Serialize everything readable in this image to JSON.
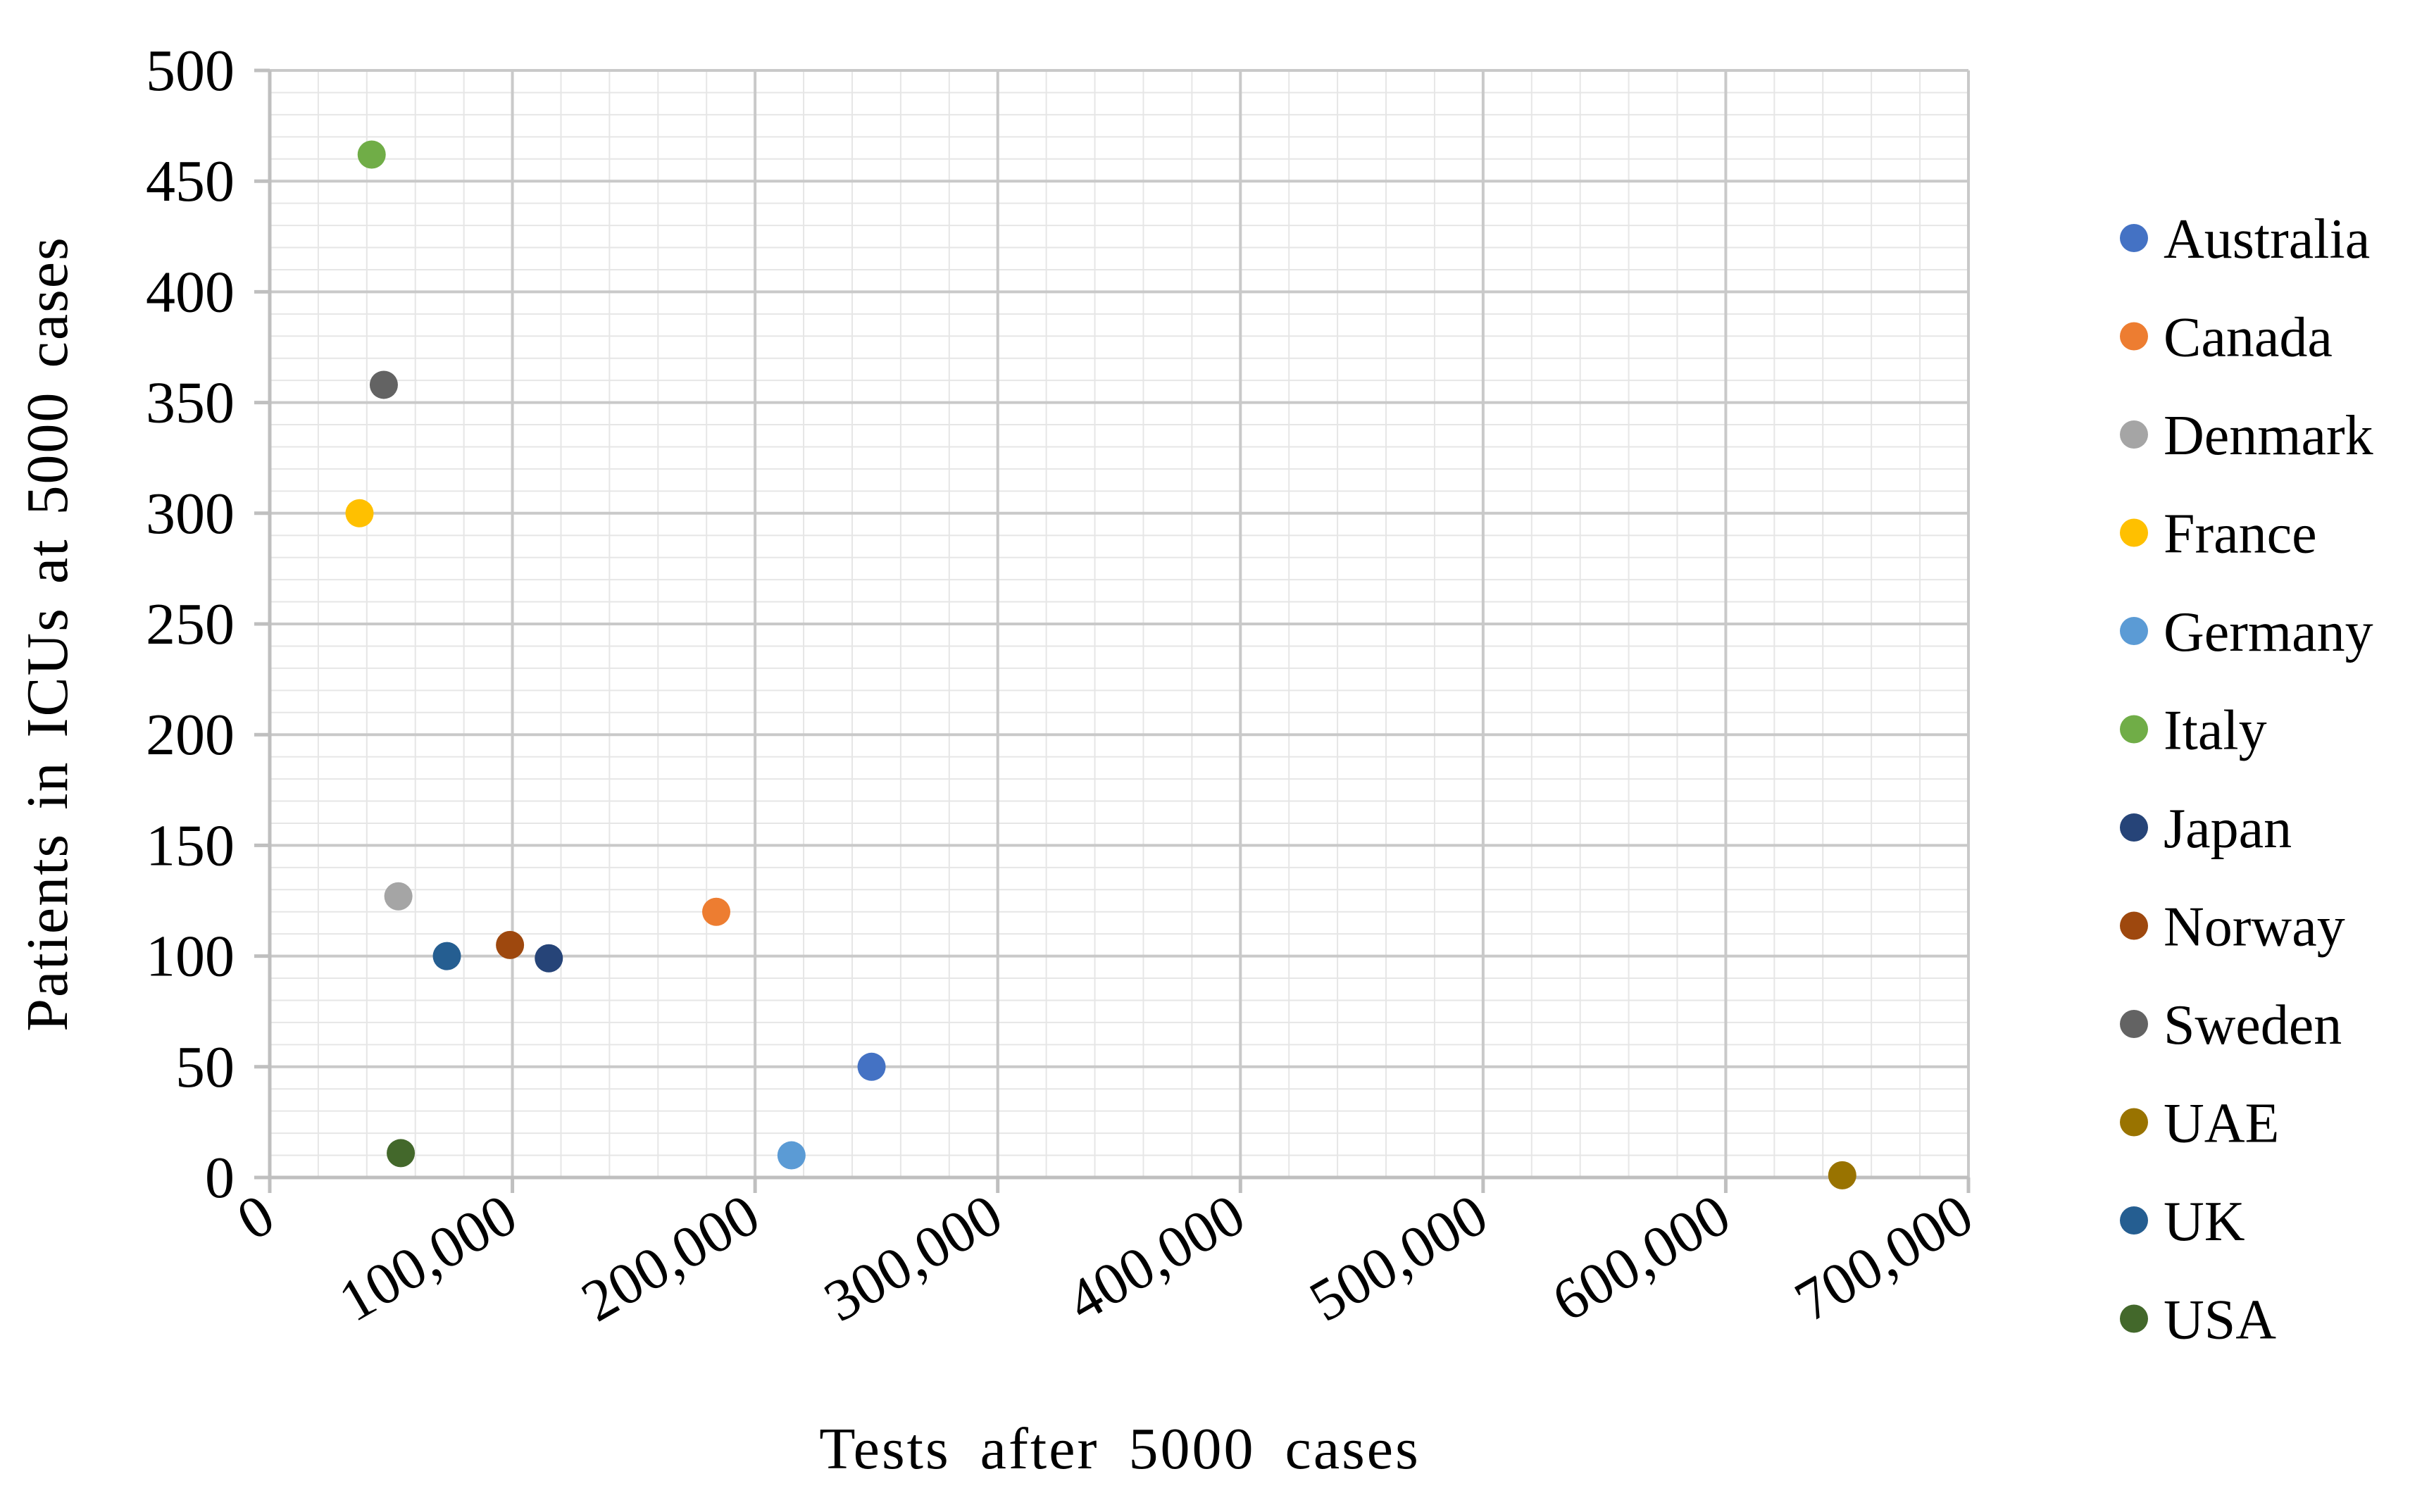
{
  "chart_data": {
    "type": "scatter",
    "title": "",
    "xlabel": "Tests after 5000 cases",
    "ylabel": "Patients in ICUs at 5000 cases",
    "xlim": [
      0,
      700000
    ],
    "ylim": [
      0,
      500
    ],
    "x_major_ticks": [
      0,
      100000,
      200000,
      300000,
      400000,
      500000,
      600000,
      700000
    ],
    "x_tick_labels": [
      "0",
      "100,000",
      "200,000",
      "300,000",
      "400,000",
      "500,000",
      "600,000",
      "700,000"
    ],
    "y_major_ticks": [
      0,
      50,
      100,
      150,
      200,
      250,
      300,
      350,
      400,
      450,
      500
    ],
    "y_tick_labels": [
      "0",
      "50",
      "100",
      "150",
      "200",
      "250",
      "300",
      "350",
      "400",
      "450",
      "500"
    ],
    "x_minor_step": 20000,
    "y_minor_step": 10,
    "grid": true,
    "legend_position": "right",
    "series": [
      {
        "name": "Australia",
        "color": "#4472C4",
        "x": 248000,
        "y": 50
      },
      {
        "name": "Canada",
        "color": "#ED7D31",
        "x": 184000,
        "y": 120
      },
      {
        "name": "Denmark",
        "color": "#A5A5A5",
        "x": 53000,
        "y": 127
      },
      {
        "name": "France",
        "color": "#FFC000",
        "x": 37000,
        "y": 300
      },
      {
        "name": "Germany",
        "color": "#5B9BD5",
        "x": 215000,
        "y": 10
      },
      {
        "name": "Italy",
        "color": "#70AD47",
        "x": 42000,
        "y": 462
      },
      {
        "name": "Japan",
        "color": "#264478",
        "x": 115000,
        "y": 99
      },
      {
        "name": "Norway",
        "color": "#9E480E",
        "x": 99000,
        "y": 105
      },
      {
        "name": "Sweden",
        "color": "#636363",
        "x": 47000,
        "y": 358
      },
      {
        "name": "UAE",
        "color": "#997300",
        "x": 648000,
        "y": 1
      },
      {
        "name": "UK",
        "color": "#255E91",
        "x": 73000,
        "y": 100
      },
      {
        "name": "USA",
        "color": "#43682B",
        "x": 54000,
        "y": 11
      }
    ]
  }
}
